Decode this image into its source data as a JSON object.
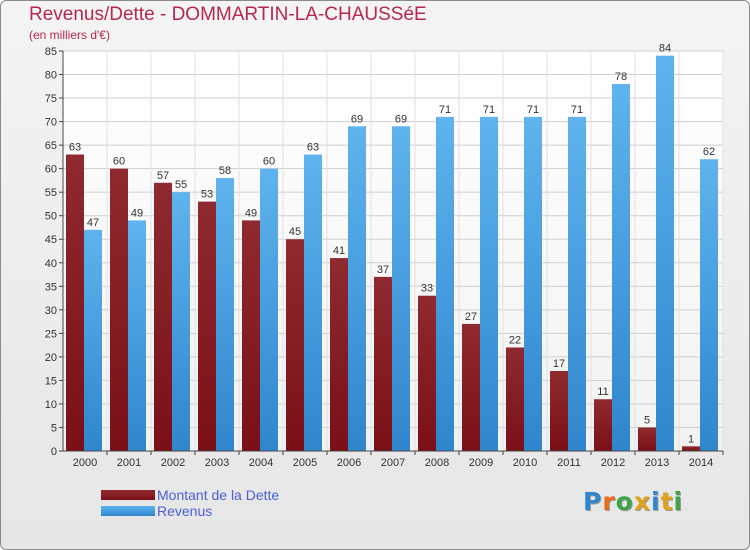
{
  "title": "Revenus/Dette - DOMMARTIN-LA-CHAUSSéE",
  "subtitle": "(en milliers d'€)",
  "logo": {
    "text": "Proxiti"
  },
  "colors": {
    "dette": "#7a0f18",
    "revenus": "#47a3e6",
    "title": "#b7284d",
    "legend_text": "#4b5fd6"
  },
  "chart_data": {
    "type": "bar",
    "title": "Revenus/Dette - DOMMARTIN-LA-CHAUSSéE",
    "ylabel": "(en milliers d'€)",
    "categories": [
      "2000",
      "2001",
      "2002",
      "2003",
      "2004",
      "2005",
      "2006",
      "2007",
      "2008",
      "2009",
      "2010",
      "2011",
      "2012",
      "2013",
      "2014"
    ],
    "series": [
      {
        "name": "Montant de la Dette",
        "values": [
          63,
          60,
          57,
          53,
          49,
          45,
          41,
          37,
          33,
          27,
          22,
          17,
          11,
          5,
          1
        ]
      },
      {
        "name": "Revenus",
        "values": [
          47,
          49,
          55,
          58,
          60,
          63,
          69,
          69,
          71,
          71,
          71,
          71,
          78,
          84,
          62
        ]
      }
    ],
    "ylim": [
      0,
      85
    ],
    "yticks": [
      0,
      5,
      10,
      15,
      20,
      25,
      30,
      35,
      40,
      45,
      50,
      55,
      60,
      65,
      70,
      75,
      80,
      85
    ],
    "grid": true,
    "legend": "bottom-left"
  }
}
